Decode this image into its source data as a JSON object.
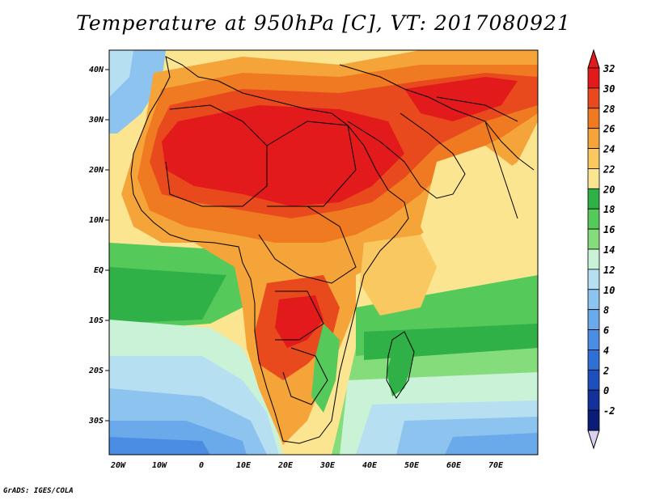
{
  "title": "Temperature at 950hPa [C], VT: 2017080921",
  "footer": "GrADS: IGES/COLA",
  "axes": {
    "lat_labels": [
      "40N",
      "30N",
      "20N",
      "10N",
      "EQ",
      "10S",
      "20S",
      "30S"
    ],
    "lon_labels": [
      "20W",
      "10W",
      "0",
      "10E",
      "20E",
      "30E",
      "40E",
      "50E",
      "60E",
      "70E"
    ]
  },
  "colorbar": {
    "labels": [
      "32",
      "30",
      "28",
      "26",
      "24",
      "22",
      "20",
      "18",
      "16",
      "14",
      "12",
      "10",
      "8",
      "6",
      "4",
      "2",
      "0",
      "-2"
    ],
    "colors": [
      "#e31a1c",
      "#e84a1e",
      "#ef7a22",
      "#f5a43a",
      "#f9c860",
      "#fbe591",
      "#2fb147",
      "#55c95a",
      "#85dc7a",
      "#c9f2d6",
      "#b7dff2",
      "#8dc4ef",
      "#6aa9ea",
      "#4a8de2",
      "#2f6fd6",
      "#1e50bd",
      "#13319a",
      "#0b1c78"
    ]
  }
}
